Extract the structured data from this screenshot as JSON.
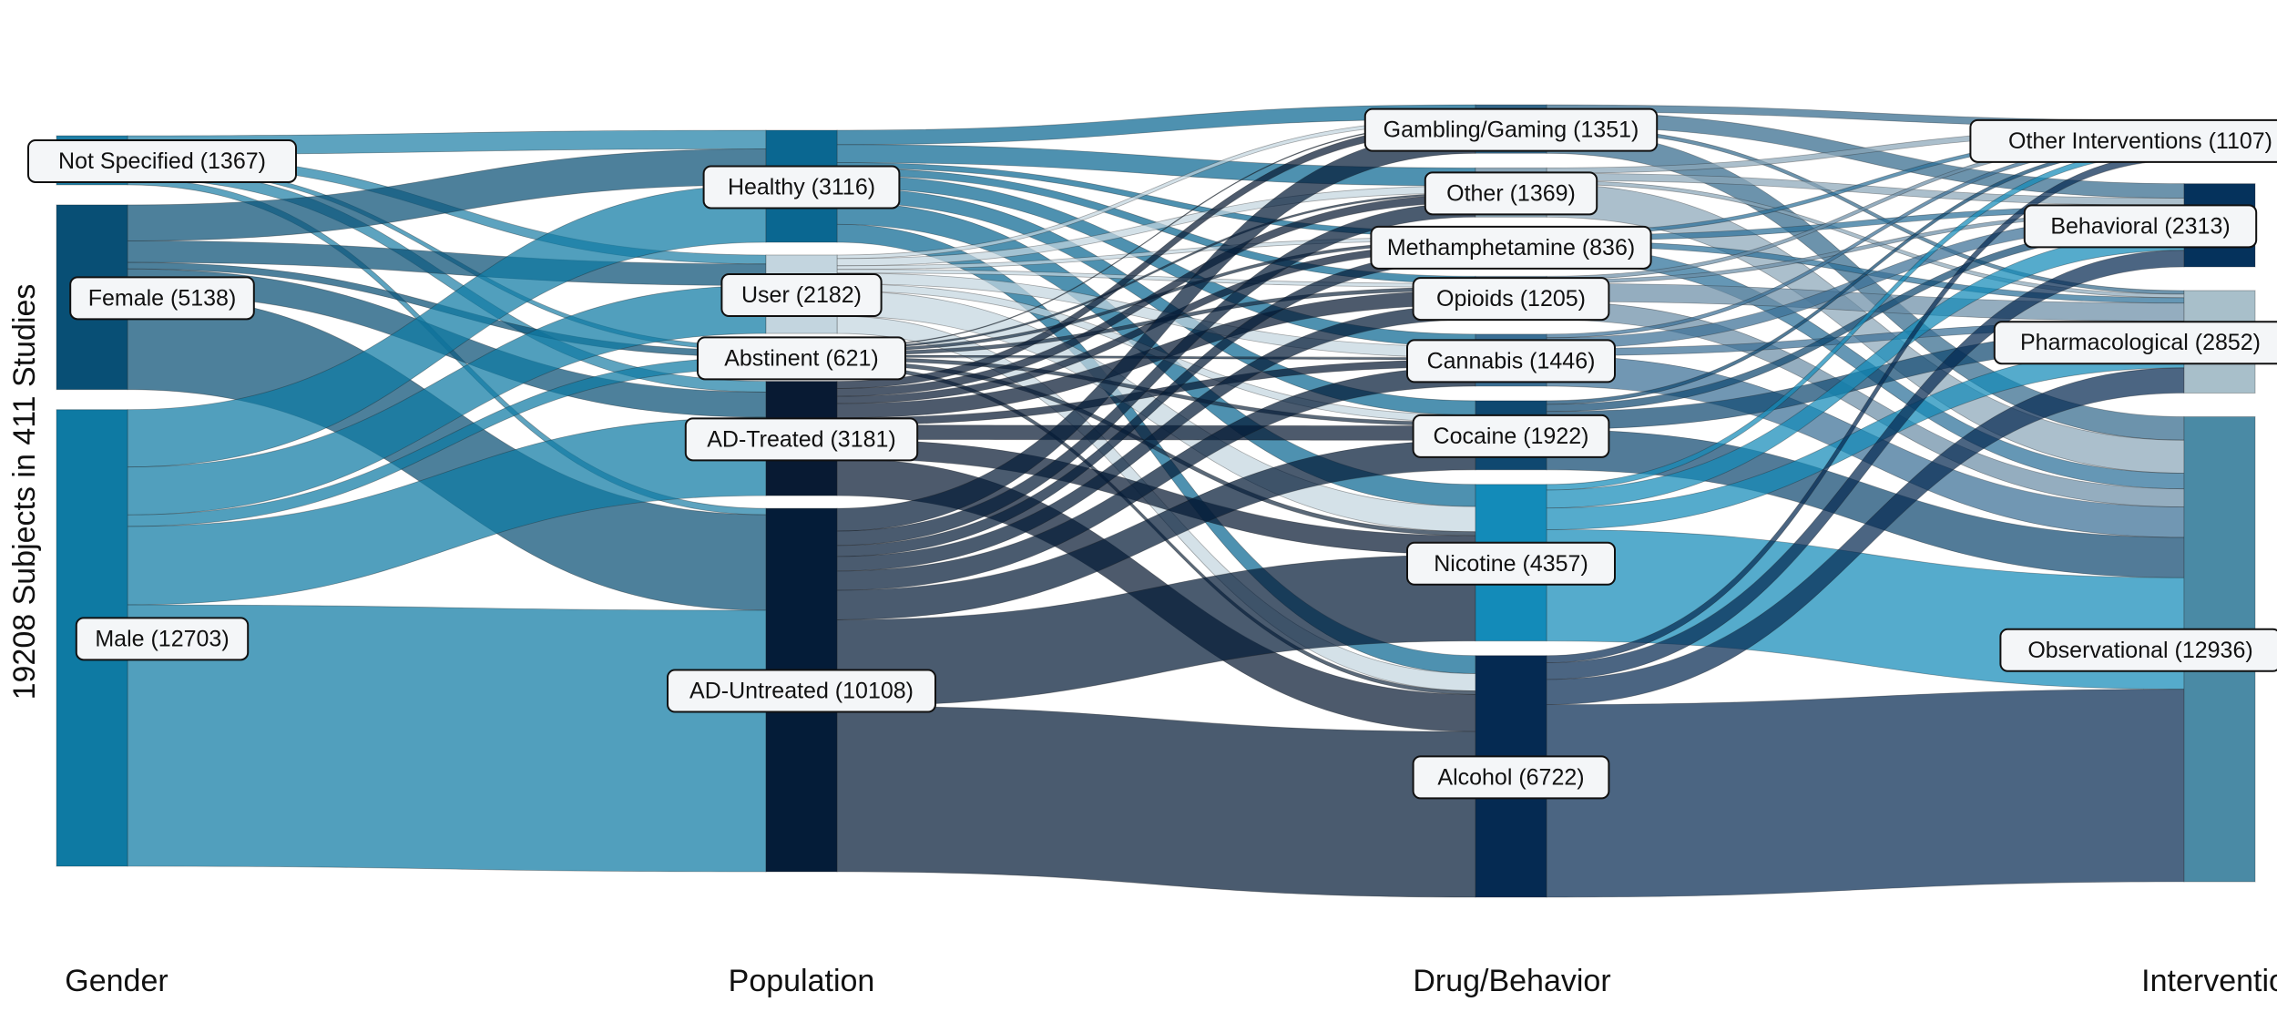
{
  "chart_data": {
    "type": "sankey",
    "ylabel": "19208 Subjects in 411 Studies",
    "columns": [
      {
        "title": "Gender",
        "nodes": [
          {
            "label": "Not Specified (1367)",
            "value": 1367,
            "color": "#1f7fa6"
          },
          {
            "label": "Female (5138)",
            "value": 5138,
            "color": "#084f75"
          },
          {
            "label": "Male (12703)",
            "value": 12703,
            "color": "#0e7aa3"
          }
        ]
      },
      {
        "title": "Population",
        "nodes": [
          {
            "label": "Healthy (3116)",
            "value": 3116,
            "color": "#0a6791"
          },
          {
            "label": "User (2182)",
            "value": 2182,
            "color": "#c3d5df"
          },
          {
            "label": "Abstinent (621)",
            "value": 621,
            "color": "#1b2f45"
          },
          {
            "label": "AD-Treated (3181)",
            "value": 3181,
            "color": "#081a33"
          },
          {
            "label": "AD-Untreated (10108)",
            "value": 10108,
            "color": "#041c38"
          }
        ]
      },
      {
        "title": "Drug/Behavior",
        "nodes": [
          {
            "label": "Gambling/Gaming (1351)",
            "value": 1351,
            "color": "#33698c"
          },
          {
            "label": "Other (1369)",
            "value": 1369,
            "color": "#8aa6b8"
          },
          {
            "label": "Methamphetamine (836)",
            "value": 836,
            "color": "#2a6f99"
          },
          {
            "label": "Opioids (1205)",
            "value": 1205,
            "color": "#6b8ea6"
          },
          {
            "label": "Cannabis (1446)",
            "value": 1446,
            "color": "#3a6f95"
          },
          {
            "label": "Cocaine (1922)",
            "value": 1922,
            "color": "#0f4870"
          },
          {
            "label": "Nicotine (4357)",
            "value": 4357,
            "color": "#138bb9"
          },
          {
            "label": "Alcohol (6722)",
            "value": 6722,
            "color": "#052a52"
          }
        ]
      },
      {
        "title": "Intervention",
        "nodes": [
          {
            "label": "Other Interventions (1107)",
            "value": 1107,
            "color": "#a9bcc8"
          },
          {
            "label": "Behavioral (2313)",
            "value": 2313,
            "color": "#05325c"
          },
          {
            "label": "Pharmacological (2852)",
            "value": 2852,
            "color": "#a8bfca"
          },
          {
            "label": "Observational (12936)",
            "value": 12936,
            "color": "#4a8aa5"
          }
        ]
      }
    ],
    "links": [
      {
        "source": "Not Specified (1367)",
        "target": "Healthy (3116)",
        "value": 520
      },
      {
        "source": "Not Specified (1367)",
        "target": "User (2182)",
        "value": 250
      },
      {
        "source": "Not Specified (1367)",
        "target": "Abstinent (621)",
        "value": 120
      },
      {
        "source": "Not Specified (1367)",
        "target": "AD-Treated (3181)",
        "value": 300
      },
      {
        "source": "Not Specified (1367)",
        "target": "AD-Untreated (10108)",
        "value": 177
      },
      {
        "source": "Female (5138)",
        "target": "Healthy (3116)",
        "value": 1000
      },
      {
        "source": "Female (5138)",
        "target": "User (2182)",
        "value": 600
      },
      {
        "source": "Female (5138)",
        "target": "Abstinent (621)",
        "value": 180
      },
      {
        "source": "Female (5138)",
        "target": "AD-Treated (3181)",
        "value": 700
      },
      {
        "source": "Female (5138)",
        "target": "AD-Untreated (10108)",
        "value": 2658
      },
      {
        "source": "Male (12703)",
        "target": "Healthy (3116)",
        "value": 1596
      },
      {
        "source": "Male (12703)",
        "target": "User (2182)",
        "value": 1332
      },
      {
        "source": "Male (12703)",
        "target": "Abstinent (621)",
        "value": 321
      },
      {
        "source": "Male (12703)",
        "target": "AD-Treated (3181)",
        "value": 2181
      },
      {
        "source": "Male (12703)",
        "target": "AD-Untreated (10108)",
        "value": 7273
      },
      {
        "source": "Healthy (3116)",
        "target": "Gambling/Gaming (1351)",
        "value": 400
      },
      {
        "source": "Healthy (3116)",
        "target": "Other (1369)",
        "value": 500
      },
      {
        "source": "Healthy (3116)",
        "target": "Methamphetamine (836)",
        "value": 150
      },
      {
        "source": "Healthy (3116)",
        "target": "Opioids (1205)",
        "value": 200
      },
      {
        "source": "Healthy (3116)",
        "target": "Cannabis (1446)",
        "value": 350
      },
      {
        "source": "Healthy (3116)",
        "target": "Cocaine (1922)",
        "value": 400
      },
      {
        "source": "Healthy (3116)",
        "target": "Nicotine (4357)",
        "value": 616
      },
      {
        "source": "Healthy (3116)",
        "target": "Alcohol (6722)",
        "value": 500
      },
      {
        "source": "User (2182)",
        "target": "Gambling/Gaming (1351)",
        "value": 100
      },
      {
        "source": "User (2182)",
        "target": "Other (1369)",
        "value": 200
      },
      {
        "source": "User (2182)",
        "target": "Methamphetamine (836)",
        "value": 100
      },
      {
        "source": "User (2182)",
        "target": "Opioids (1205)",
        "value": 100
      },
      {
        "source": "User (2182)",
        "target": "Cannabis (1446)",
        "value": 300
      },
      {
        "source": "User (2182)",
        "target": "Cocaine (1922)",
        "value": 200
      },
      {
        "source": "User (2182)",
        "target": "Nicotine (4357)",
        "value": 700
      },
      {
        "source": "User (2182)",
        "target": "Alcohol (6722)",
        "value": 482
      },
      {
        "source": "Abstinent (621)",
        "target": "Gambling/Gaming (1351)",
        "value": 20
      },
      {
        "source": "Abstinent (621)",
        "target": "Other (1369)",
        "value": 50
      },
      {
        "source": "Abstinent (621)",
        "target": "Methamphetamine (836)",
        "value": 80
      },
      {
        "source": "Abstinent (621)",
        "target": "Opioids (1205)",
        "value": 100
      },
      {
        "source": "Abstinent (621)",
        "target": "Cannabis (1446)",
        "value": 60
      },
      {
        "source": "Abstinent (621)",
        "target": "Cocaine (1922)",
        "value": 100
      },
      {
        "source": "Abstinent (621)",
        "target": "Nicotine (4357)",
        "value": 111
      },
      {
        "source": "Abstinent (621)",
        "target": "Alcohol (6722)",
        "value": 100
      },
      {
        "source": "AD-Treated (3181)",
        "target": "Gambling/Gaming (1351)",
        "value": 200
      },
      {
        "source": "AD-Treated (3181)",
        "target": "Other (1369)",
        "value": 219
      },
      {
        "source": "AD-Treated (3181)",
        "target": "Methamphetamine (836)",
        "value": 200
      },
      {
        "source": "AD-Treated (3181)",
        "target": "Opioids (1205)",
        "value": 400
      },
      {
        "source": "AD-Treated (3181)",
        "target": "Cannabis (1446)",
        "value": 200
      },
      {
        "source": "AD-Treated (3181)",
        "target": "Cocaine (1922)",
        "value": 400
      },
      {
        "source": "AD-Treated (3181)",
        "target": "Nicotine (4357)",
        "value": 530
      },
      {
        "source": "AD-Treated (3181)",
        "target": "Alcohol (6722)",
        "value": 1032
      },
      {
        "source": "AD-Untreated (10108)",
        "target": "Gambling/Gaming (1351)",
        "value": 631
      },
      {
        "source": "AD-Untreated (10108)",
        "target": "Other (1369)",
        "value": 400
      },
      {
        "source": "AD-Untreated (10108)",
        "target": "Methamphetamine (836)",
        "value": 306
      },
      {
        "source": "AD-Untreated (10108)",
        "target": "Opioids (1205)",
        "value": 405
      },
      {
        "source": "AD-Untreated (10108)",
        "target": "Cannabis (1446)",
        "value": 536
      },
      {
        "source": "AD-Untreated (10108)",
        "target": "Cocaine (1922)",
        "value": 822
      },
      {
        "source": "AD-Untreated (10108)",
        "target": "Nicotine (4357)",
        "value": 2400
      },
      {
        "source": "AD-Untreated (10108)",
        "target": "Alcohol (6722)",
        "value": 4608
      },
      {
        "source": "Gambling/Gaming (1351)",
        "target": "Other Interventions (1107)",
        "value": 200
      },
      {
        "source": "Gambling/Gaming (1351)",
        "target": "Behavioral (2313)",
        "value": 400
      },
      {
        "source": "Gambling/Gaming (1351)",
        "target": "Pharmacological (2852)",
        "value": 100
      },
      {
        "source": "Gambling/Gaming (1351)",
        "target": "Observational (12936)",
        "value": 651
      },
      {
        "source": "Other (1369)",
        "target": "Other Interventions (1107)",
        "value": 150
      },
      {
        "source": "Other (1369)",
        "target": "Behavioral (2313)",
        "value": 200
      },
      {
        "source": "Other (1369)",
        "target": "Pharmacological (2852)",
        "value": 100
      },
      {
        "source": "Other (1369)",
        "target": "Observational (12936)",
        "value": 919
      },
      {
        "source": "Methamphetamine (836)",
        "target": "Other Interventions (1107)",
        "value": 100
      },
      {
        "source": "Methamphetamine (836)",
        "target": "Behavioral (2313)",
        "value": 150
      },
      {
        "source": "Methamphetamine (836)",
        "target": "Pharmacological (2852)",
        "value": 150
      },
      {
        "source": "Methamphetamine (836)",
        "target": "Observational (12936)",
        "value": 436
      },
      {
        "source": "Opioids (1205)",
        "target": "Other Interventions (1107)",
        "value": 100
      },
      {
        "source": "Opioids (1205)",
        "target": "Behavioral (2313)",
        "value": 100
      },
      {
        "source": "Opioids (1205)",
        "target": "Pharmacological (2852)",
        "value": 500
      },
      {
        "source": "Opioids (1205)",
        "target": "Observational (12936)",
        "value": 505
      },
      {
        "source": "Cannabis (1446)",
        "target": "Other Interventions (1107)",
        "value": 100
      },
      {
        "source": "Cannabis (1446)",
        "target": "Behavioral (2313)",
        "value": 300
      },
      {
        "source": "Cannabis (1446)",
        "target": "Pharmacological (2852)",
        "value": 200
      },
      {
        "source": "Cannabis (1446)",
        "target": "Observational (12936)",
        "value": 846
      },
      {
        "source": "Cocaine (1922)",
        "target": "Other Interventions (1107)",
        "value": 100
      },
      {
        "source": "Cocaine (1922)",
        "target": "Behavioral (2313)",
        "value": 200
      },
      {
        "source": "Cocaine (1922)",
        "target": "Pharmacological (2852)",
        "value": 500
      },
      {
        "source": "Cocaine (1922)",
        "target": "Observational (12936)",
        "value": 1122
      },
      {
        "source": "Nicotine (4357)",
        "target": "Other Interventions (1107)",
        "value": 157
      },
      {
        "source": "Nicotine (4357)",
        "target": "Behavioral (2313)",
        "value": 500
      },
      {
        "source": "Nicotine (4357)",
        "target": "Pharmacological (2852)",
        "value": 600
      },
      {
        "source": "Nicotine (4357)",
        "target": "Observational (12936)",
        "value": 3100
      },
      {
        "source": "Alcohol (6722)",
        "target": "Other Interventions (1107)",
        "value": 200
      },
      {
        "source": "Alcohol (6722)",
        "target": "Behavioral (2313)",
        "value": 463
      },
      {
        "source": "Alcohol (6722)",
        "target": "Pharmacological (2852)",
        "value": 702
      },
      {
        "source": "Alcohol (6722)",
        "target": "Observational (12936)",
        "value": 5357
      }
    ]
  }
}
